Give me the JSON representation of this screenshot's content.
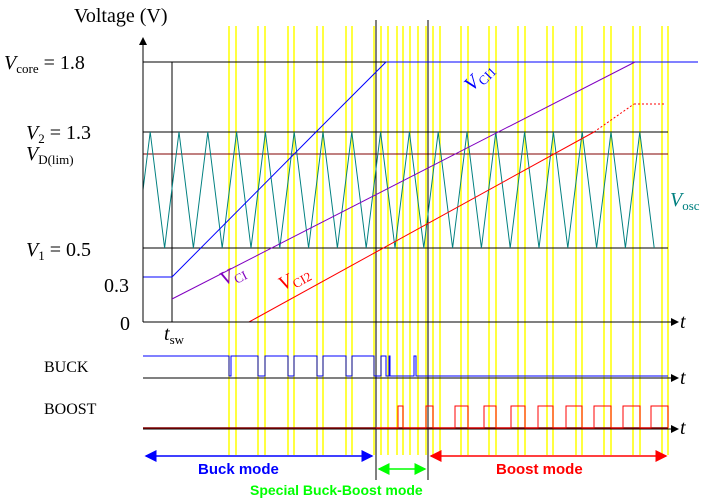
{
  "title": "Voltage (V)",
  "y_labels": {
    "vcore": "V",
    "vcore_sub": "core",
    "vcore_val": " = 1.8",
    "v2": "V",
    "v2_sub": "2",
    "v2_val": " = 1.3",
    "vd": "V",
    "vd_sub": "D(lim)",
    "v1": "V",
    "v1_sub": "1",
    "v1_val": " = 0.5",
    "v03": "0.3",
    "v0": "0"
  },
  "axis_labels": {
    "t_main": "t",
    "t_buck": "t",
    "t_boost": "t",
    "tsw": "t",
    "tsw_sub": "sw"
  },
  "signal_labels": {
    "vci1": "V",
    "vci1_sub": "CI1",
    "vci": "V",
    "vci_sub": "CI",
    "vci2": "V",
    "vci2_sub": "CI2",
    "vosc": "V",
    "vosc_sub": "osc",
    "buck": "BUCK",
    "boost": "BOOST"
  },
  "modes": {
    "buck": "Buck mode",
    "special": "Special Buck-Boost mode",
    "boost": "Boost mode"
  },
  "colors": {
    "blue": "#0000ff",
    "purple": "#8000c0",
    "red": "#ff0000",
    "teal": "#008080",
    "darkred": "#800000",
    "yellow": "#ffff00",
    "green": "#00ff00",
    "navy": "#000080"
  }
}
